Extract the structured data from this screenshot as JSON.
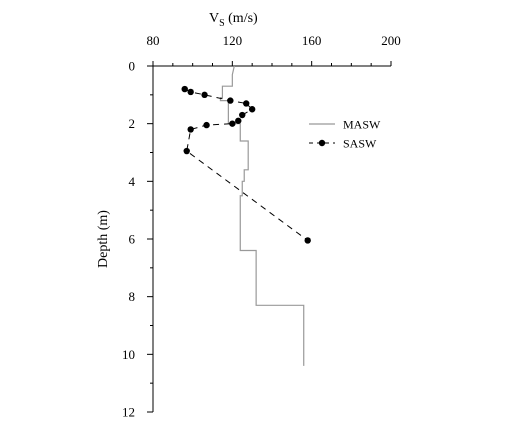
{
  "chart_data": {
    "type": "line",
    "title": "",
    "xlabel": {
      "main": "V",
      "subscript": "S",
      "unit": " (m/s)"
    },
    "ylabel": "Depth (m)",
    "x_axis_position": "top",
    "y_axis_inverted": true,
    "xlim": [
      80,
      200
    ],
    "ylim": [
      0,
      12
    ],
    "x_ticks": [
      80,
      120,
      160,
      200
    ],
    "x_tick_labels": [
      "80",
      "120",
      "160",
      "200"
    ],
    "y_ticks": [
      0,
      2,
      4,
      6,
      8,
      10,
      12
    ],
    "y_tick_labels": [
      "0",
      "2",
      "4",
      "6",
      "8",
      "10",
      "12"
    ],
    "grid": false,
    "legend_position": "right",
    "series": [
      {
        "name": "MASW",
        "style": "solid",
        "marker": "none",
        "color": "#999999",
        "x": [
          121,
          120,
          120,
          120,
          120,
          115,
          115,
          114,
          114,
          118,
          118,
          124,
          124,
          128,
          128,
          126,
          126,
          125,
          125,
          124,
          124,
          124,
          124,
          132,
          132,
          156,
          156
        ],
        "y": [
          0.0,
          0.3,
          0.3,
          0.7,
          0.7,
          0.7,
          1.1,
          1.1,
          1.2,
          1.2,
          2.0,
          2.0,
          2.6,
          2.6,
          3.6,
          3.6,
          4.0,
          4.0,
          4.5,
          4.5,
          5.2,
          5.2,
          6.4,
          6.4,
          8.3,
          8.3,
          10.4
        ]
      },
      {
        "name": "SASW",
        "style": "dashed",
        "marker": "circle",
        "color": "#000000",
        "x": [
          96,
          99,
          106,
          119,
          127,
          130,
          125,
          123,
          120,
          107,
          99,
          97,
          158
        ],
        "y": [
          0.8,
          0.9,
          1.0,
          1.2,
          1.3,
          1.5,
          1.7,
          1.9,
          2.0,
          2.05,
          2.2,
          2.95,
          6.05
        ]
      }
    ]
  }
}
